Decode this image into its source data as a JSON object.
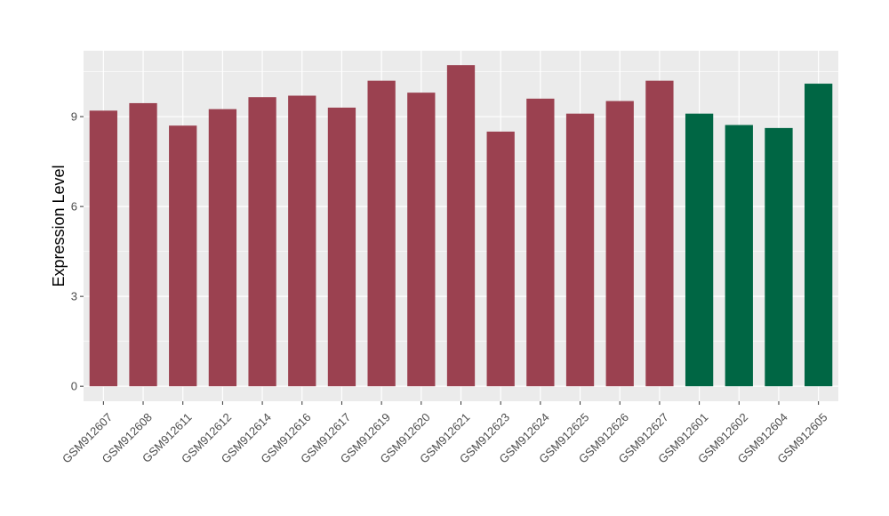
{
  "chart_data": {
    "type": "bar",
    "title": "",
    "xlabel": "",
    "ylabel": "Expression Level",
    "ylim": [
      -0.5,
      11.2
    ],
    "yticks": [
      0,
      3,
      6,
      9
    ],
    "grid": true,
    "legend": "none",
    "colors": {
      "group1": "#9b4150",
      "group2": "#006644",
      "panel": "#ebebeb",
      "grid": "#ffffff"
    },
    "categories": [
      "GSM912607",
      "GSM912608",
      "GSM912611",
      "GSM912612",
      "GSM912614",
      "GSM912616",
      "GSM912617",
      "GSM912619",
      "GSM912620",
      "GSM912621",
      "GSM912623",
      "GSM912624",
      "GSM912625",
      "GSM912626",
      "GSM912627",
      "GSM912601",
      "GSM912602",
      "GSM912604",
      "GSM912605"
    ],
    "values": [
      9.2,
      9.45,
      8.7,
      9.25,
      9.65,
      9.7,
      9.3,
      10.2,
      9.8,
      10.72,
      8.5,
      9.6,
      9.1,
      9.52,
      10.2,
      9.1,
      8.72,
      8.62,
      10.1
    ],
    "groups": [
      1,
      1,
      1,
      1,
      1,
      1,
      1,
      1,
      1,
      1,
      1,
      1,
      1,
      1,
      1,
      2,
      2,
      2,
      2
    ]
  }
}
